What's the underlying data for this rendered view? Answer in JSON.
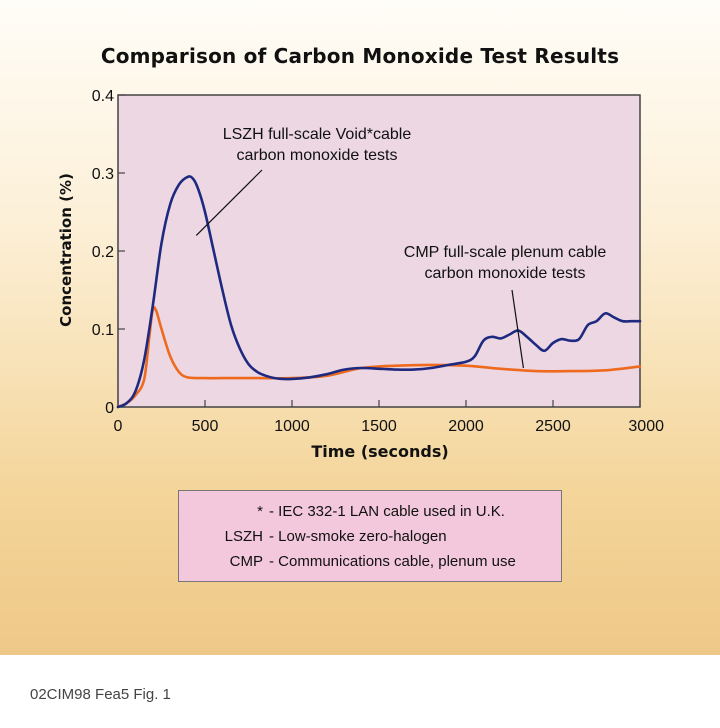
{
  "chart_data": {
    "type": "line",
    "title": "Comparison of Carbon Monoxide Test Results",
    "xlabel": "Time (seconds)",
    "ylabel": "Concentration (%)",
    "xlim": [
      0,
      3000
    ],
    "ylim": [
      0,
      0.4
    ],
    "x_ticks": [
      "0",
      "500",
      "1000",
      "1500",
      "2000",
      "2500",
      "3000"
    ],
    "y_ticks": [
      "0",
      "0.1",
      "0.2",
      "0.3",
      "0.4"
    ],
    "grid": false,
    "legend": "box below chart",
    "series": [
      {
        "color": "#1e2a80",
        "x": [
          0,
          50,
          100,
          150,
          200,
          250,
          300,
          350,
          400,
          430,
          460,
          500,
          550,
          600,
          650,
          700,
          750,
          800,
          850,
          900,
          950,
          1000,
          1100,
          1200,
          1300,
          1400,
          1500,
          1600,
          1700,
          1800,
          1900,
          2000,
          2050,
          2100,
          2150,
          2200,
          2250,
          2300,
          2350,
          2400,
          2450,
          2500,
          2550,
          2600,
          2650,
          2700,
          2750,
          2800,
          2850,
          2900,
          2950,
          3000
        ],
        "y": [
          0,
          0.005,
          0.02,
          0.06,
          0.13,
          0.21,
          0.26,
          0.285,
          0.295,
          0.293,
          0.28,
          0.25,
          0.2,
          0.15,
          0.105,
          0.075,
          0.055,
          0.045,
          0.04,
          0.037,
          0.036,
          0.036,
          0.038,
          0.042,
          0.048,
          0.05,
          0.049,
          0.048,
          0.048,
          0.05,
          0.054,
          0.058,
          0.065,
          0.085,
          0.09,
          0.088,
          0.093,
          0.098,
          0.09,
          0.08,
          0.072,
          0.082,
          0.087,
          0.085,
          0.087,
          0.105,
          0.11,
          0.12,
          0.115,
          0.11,
          0.11,
          0.11
        ]
      },
      {
        "color": "#ee6a1e",
        "x": [
          0,
          50,
          100,
          150,
          180,
          200,
          220,
          250,
          300,
          350,
          400,
          500,
          600,
          800,
          1000,
          1200,
          1400,
          1600,
          1800,
          2000,
          2200,
          2400,
          2600,
          2800,
          3000
        ],
        "y": [
          0,
          0.005,
          0.015,
          0.035,
          0.09,
          0.125,
          0.123,
          0.1,
          0.065,
          0.045,
          0.038,
          0.037,
          0.037,
          0.037,
          0.037,
          0.04,
          0.05,
          0.053,
          0.054,
          0.053,
          0.049,
          0.046,
          0.046,
          0.047,
          0.052
        ]
      }
    ],
    "annotations": [
      {
        "lines": [
          "LSZH full-scale Void*cable",
          "carbon monoxide tests"
        ],
        "points_to": [
          450,
          0.22
        ]
      },
      {
        "lines": [
          "CMP full-scale plenum cable",
          "carbon monoxide tests"
        ],
        "points_to": [
          2330,
          0.05
        ]
      }
    ]
  },
  "legend_box": [
    {
      "key": "*",
      "sep": " - ",
      "desc": "IEC 332-1 LAN cable used in U.K."
    },
    {
      "key": "LSZH",
      "sep": " - ",
      "desc": "Low-smoke zero-halogen"
    },
    {
      "key": "CMP",
      "sep": " - ",
      "desc": "Communications cable, plenum use"
    }
  ],
  "caption": "02CIM98 Fea5 Fig. 1",
  "colors": {
    "plot_area": "#ecd7e3",
    "plot_border": "#444444",
    "legend_box": "#f3c8dc"
  }
}
